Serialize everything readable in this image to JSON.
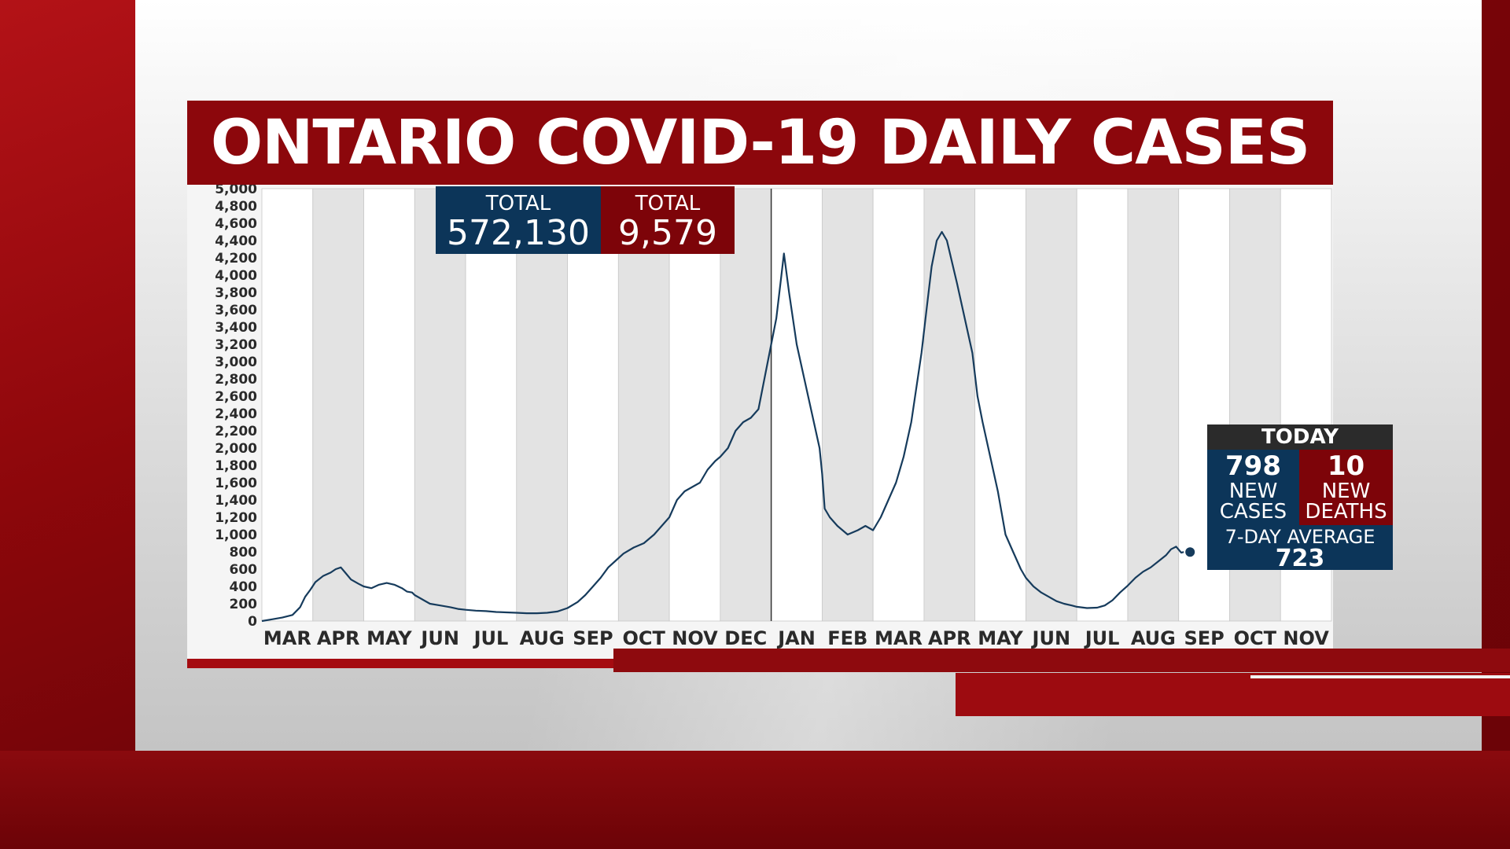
{
  "title": "ONTARIO COVID-19 DAILY CASES",
  "totals": {
    "cases_label": "TOTAL",
    "cases_value": "572,130",
    "deaths_label": "TOTAL",
    "deaths_value": "9,579"
  },
  "today": {
    "header": "TODAY",
    "new_cases_value": "798",
    "new_cases_label_1": "NEW",
    "new_cases_label_2": "CASES",
    "new_deaths_value": "10",
    "new_deaths_label_1": "NEW",
    "new_deaths_label_2": "DEATHS",
    "avg_label": "7-DAY AVERAGE",
    "avg_value": "723"
  },
  "colors": {
    "brand_red": "#8c070c",
    "navy": "#0c3559",
    "line": "#163b5c",
    "band_shade": "#e3e3e3",
    "band_white": "#ffffff"
  },
  "chart_data": {
    "type": "line",
    "title": "ONTARIO COVID-19 DAILY CASES",
    "xlabel": "",
    "ylabel": "",
    "ylim": [
      0,
      5000
    ],
    "y_ticks": [
      0,
      200,
      400,
      600,
      800,
      1000,
      1200,
      1400,
      1600,
      1800,
      2000,
      2200,
      2400,
      2600,
      2800,
      3000,
      3200,
      3400,
      3600,
      3800,
      4000,
      4200,
      4400,
      4600,
      4800,
      5000
    ],
    "y_tick_labels": [
      "0",
      "200",
      "400",
      "600",
      "800",
      "1,000",
      "1,200",
      "1,400",
      "1,600",
      "1,800",
      "2,000",
      "2,200",
      "2,400",
      "2,600",
      "2,800",
      "3,000",
      "3,200",
      "3,400",
      "3,600",
      "3,800",
      "4,000",
      "4,200",
      "4,400",
      "4,600",
      "4,800",
      "5,000"
    ],
    "months": [
      "MAR",
      "APR",
      "MAY",
      "JUN",
      "JUL",
      "AUG",
      "SEP",
      "OCT",
      "NOV",
      "DEC",
      "JAN",
      "FEB",
      "MAR",
      "APR",
      "MAY",
      "JUN",
      "JUL",
      "AUG",
      "SEP",
      "OCT",
      "NOV"
    ],
    "year_divider_before_month_index": 10,
    "grid": "vertical month bands",
    "series": [
      {
        "values_month_index": [
          [
            0.0,
            0
          ],
          [
            0.2,
            20
          ],
          [
            0.4,
            40
          ],
          [
            0.6,
            70
          ],
          [
            0.75,
            160
          ],
          [
            0.85,
            280
          ],
          [
            0.95,
            360
          ],
          [
            1.05,
            450
          ],
          [
            1.2,
            520
          ],
          [
            1.35,
            560
          ],
          [
            1.45,
            600
          ],
          [
            1.55,
            620
          ],
          [
            1.65,
            550
          ],
          [
            1.75,
            480
          ],
          [
            1.9,
            430
          ],
          [
            2.0,
            400
          ],
          [
            2.15,
            380
          ],
          [
            2.3,
            420
          ],
          [
            2.45,
            440
          ],
          [
            2.6,
            420
          ],
          [
            2.75,
            380
          ],
          [
            2.85,
            340
          ],
          [
            2.95,
            330
          ],
          [
            3.0,
            300
          ],
          [
            3.15,
            250
          ],
          [
            3.3,
            200
          ],
          [
            3.5,
            180
          ],
          [
            3.7,
            160
          ],
          [
            3.85,
            140
          ],
          [
            4.0,
            130
          ],
          [
            4.2,
            120
          ],
          [
            4.4,
            115
          ],
          [
            4.6,
            105
          ],
          [
            4.8,
            100
          ],
          [
            5.0,
            95
          ],
          [
            5.2,
            90
          ],
          [
            5.4,
            90
          ],
          [
            5.6,
            95
          ],
          [
            5.8,
            110
          ],
          [
            6.0,
            150
          ],
          [
            6.2,
            220
          ],
          [
            6.35,
            300
          ],
          [
            6.5,
            400
          ],
          [
            6.65,
            500
          ],
          [
            6.8,
            620
          ],
          [
            6.95,
            700
          ],
          [
            7.1,
            780
          ],
          [
            7.3,
            850
          ],
          [
            7.5,
            900
          ],
          [
            7.7,
            1000
          ],
          [
            7.85,
            1100
          ],
          [
            8.0,
            1200
          ],
          [
            8.15,
            1400
          ],
          [
            8.3,
            1500
          ],
          [
            8.45,
            1550
          ],
          [
            8.6,
            1600
          ],
          [
            8.75,
            1750
          ],
          [
            8.9,
            1850
          ],
          [
            9.0,
            1900
          ],
          [
            9.15,
            2000
          ],
          [
            9.3,
            2200
          ],
          [
            9.45,
            2300
          ],
          [
            9.6,
            2350
          ],
          [
            9.75,
            2450
          ],
          [
            9.9,
            2900
          ],
          [
            10.0,
            3200
          ],
          [
            10.1,
            3500
          ],
          [
            10.2,
            4000
          ],
          [
            10.25,
            4250
          ],
          [
            10.35,
            3800
          ],
          [
            10.5,
            3200
          ],
          [
            10.65,
            2800
          ],
          [
            10.8,
            2400
          ],
          [
            10.95,
            2000
          ],
          [
            11.0,
            1700
          ],
          [
            11.05,
            1300
          ],
          [
            11.15,
            1200
          ],
          [
            11.3,
            1100
          ],
          [
            11.5,
            1000
          ],
          [
            11.7,
            1050
          ],
          [
            11.85,
            1100
          ],
          [
            12.0,
            1050
          ],
          [
            12.15,
            1200
          ],
          [
            12.3,
            1400
          ],
          [
            12.45,
            1600
          ],
          [
            12.6,
            1900
          ],
          [
            12.75,
            2300
          ],
          [
            12.85,
            2700
          ],
          [
            12.95,
            3100
          ],
          [
            13.05,
            3600
          ],
          [
            13.15,
            4100
          ],
          [
            13.25,
            4400
          ],
          [
            13.35,
            4500
          ],
          [
            13.45,
            4400
          ],
          [
            13.55,
            4150
          ],
          [
            13.65,
            3900
          ],
          [
            13.8,
            3500
          ],
          [
            13.95,
            3100
          ],
          [
            14.05,
            2600
          ],
          [
            14.15,
            2300
          ],
          [
            14.3,
            1900
          ],
          [
            14.45,
            1500
          ],
          [
            14.6,
            1000
          ],
          [
            14.75,
            800
          ],
          [
            14.9,
            600
          ],
          [
            15.0,
            500
          ],
          [
            15.15,
            400
          ],
          [
            15.3,
            330
          ],
          [
            15.45,
            280
          ],
          [
            15.6,
            230
          ],
          [
            15.75,
            200
          ],
          [
            15.9,
            180
          ],
          [
            16.0,
            165
          ],
          [
            16.2,
            150
          ],
          [
            16.4,
            155
          ],
          [
            16.55,
            180
          ],
          [
            16.7,
            240
          ],
          [
            16.85,
            330
          ],
          [
            17.0,
            410
          ],
          [
            17.15,
            500
          ],
          [
            17.3,
            570
          ],
          [
            17.45,
            620
          ],
          [
            17.6,
            690
          ],
          [
            17.75,
            760
          ],
          [
            17.85,
            830
          ],
          [
            17.95,
            860
          ],
          [
            18.05,
            790
          ],
          [
            18.1,
            798
          ]
        ]
      }
    ],
    "annotations": [
      "TODAY",
      "798 NEW CASES",
      "10 NEW DEATHS",
      "7-DAY AVERAGE 723"
    ]
  }
}
